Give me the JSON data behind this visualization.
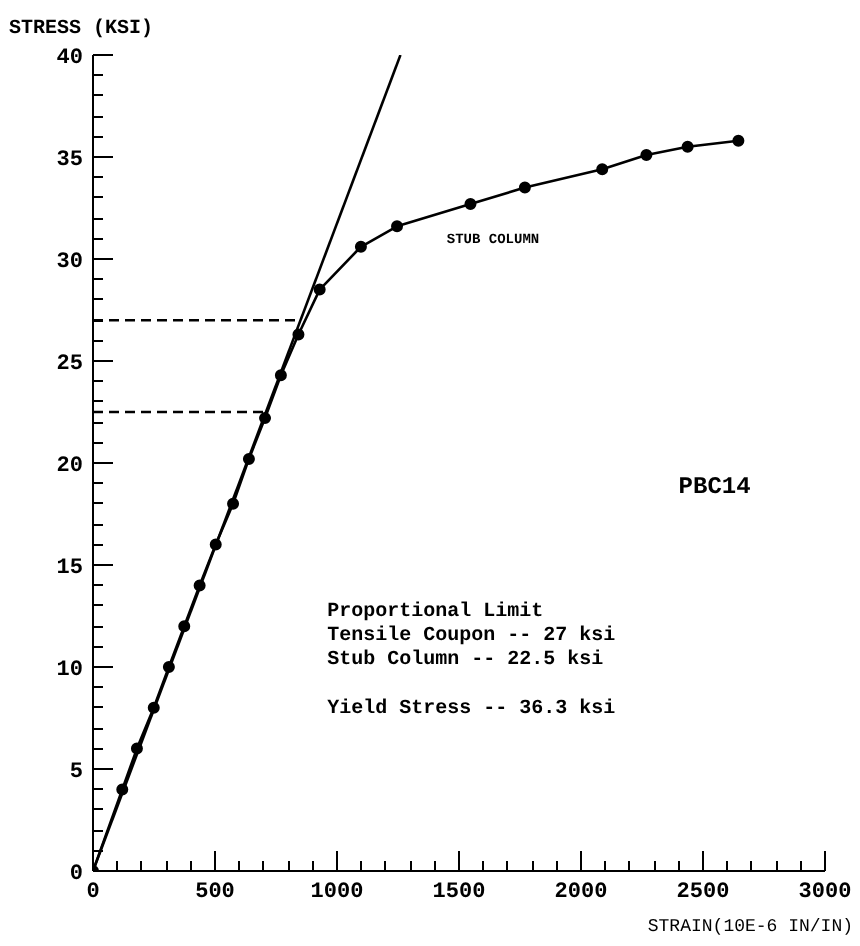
{
  "chart_data": {
    "type": "line",
    "xlabel": "STRAIN(10E-6 IN/IN)",
    "ylabel": "STRESS (KSI)",
    "series": [
      {
        "marker": "circle",
        "color": "#000000",
        "line_style": "solid",
        "x": [
          0,
          120,
          180,
          249,
          311,
          374,
          437,
          503,
          574,
          639,
          705,
          770,
          842,
          929,
          1098,
          1246,
          1547,
          1770,
          2087,
          2268,
          2437,
          2645
        ],
        "values": [
          0,
          4,
          6,
          8,
          10,
          12,
          14,
          16,
          18,
          20.2,
          22.2,
          24.3,
          26.3,
          28.5,
          30.6,
          31.6,
          32.7,
          33.5,
          34.4,
          35.1,
          35.5,
          35.8
        ]
      },
      {
        "marker": "none",
        "color": "#000000",
        "line_style": "solid",
        "x": [
          0,
          1260
        ],
        "values": [
          0,
          40
        ]
      },
      {
        "marker": "none",
        "color": "#000000",
        "line_style": "dashed",
        "x": [
          0,
          840
        ],
        "values": [
          27,
          27
        ]
      },
      {
        "marker": "none",
        "color": "#000000",
        "line_style": "dashed",
        "x": [
          0,
          705
        ],
        "values": [
          22.5,
          22.5
        ]
      }
    ],
    "annotations": [
      "STUB COLUMN",
      "PBC14",
      "Proportional Limit\nTensile Coupon -- 27 ksi\nStub Column    -- 22.5 ksi\n\nYield Stress   -- 36.3 ksi"
    ],
    "xlim": [
      0,
      3000
    ],
    "ylim": [
      0,
      40
    ],
    "xticks": [
      0,
      500,
      1000,
      1500,
      2000,
      2500,
      3000
    ],
    "yticks": [
      0,
      5,
      10,
      15,
      20,
      25,
      30,
      35,
      40
    ],
    "grid": false
  }
}
